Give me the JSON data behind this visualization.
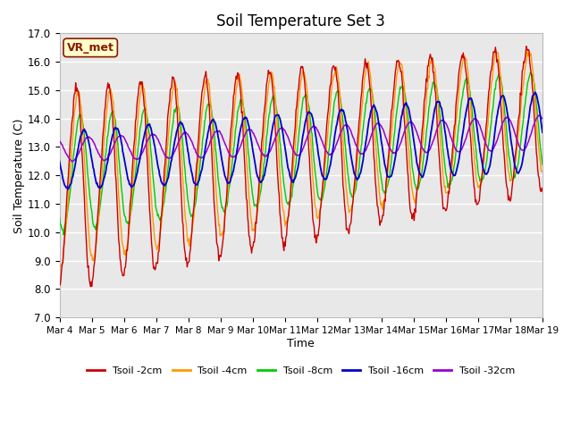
{
  "title": "Soil Temperature Set 3",
  "xlabel": "Time",
  "ylabel": "Soil Temperature (C)",
  "ylim": [
    7.0,
    17.0
  ],
  "yticks": [
    7.0,
    8.0,
    9.0,
    10.0,
    11.0,
    12.0,
    13.0,
    14.0,
    15.0,
    16.0,
    17.0
  ],
  "xtick_labels": [
    "Mar 4",
    "Mar 5",
    "Mar 6",
    "Mar 7",
    "Mar 8",
    "Mar 9",
    "Mar 10",
    "Mar 11",
    "Mar 12",
    "Mar 13",
    "Mar 14",
    "Mar 15",
    "Mar 16",
    "Mar 17",
    "Mar 18",
    "Mar 19"
  ],
  "series_colors": [
    "#cc0000",
    "#ff9900",
    "#00cc00",
    "#0000cc",
    "#9900cc"
  ],
  "series_labels": [
    "Tsoil -2cm",
    "Tsoil -4cm",
    "Tsoil -8cm",
    "Tsoil -16cm",
    "Tsoil -32cm"
  ],
  "annotation_text": "VR_met",
  "annotation_color": "#8B1A00",
  "annotation_bg": "#ffffcc",
  "fig_bg": "#ffffff",
  "plot_bg": "#e8e8e8",
  "grid_color": "#ffffff",
  "n_points": 720,
  "days": 15
}
